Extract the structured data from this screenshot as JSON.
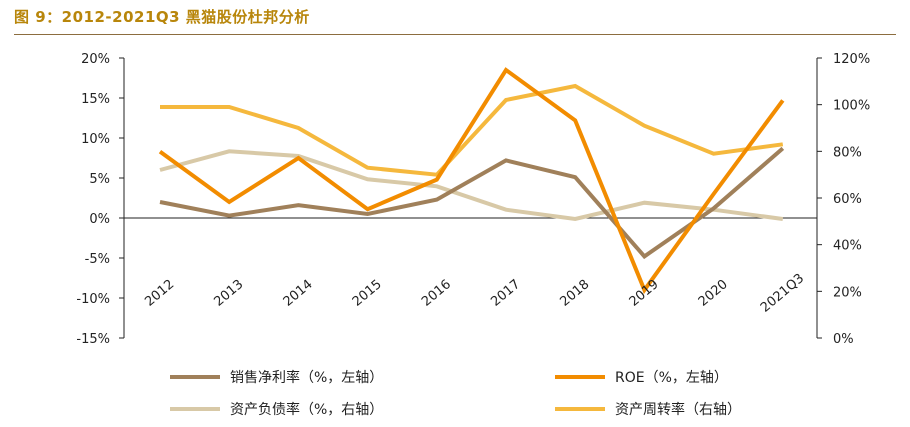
{
  "figure": {
    "title": "图 9：2012-2021Q3 黑猫股份杜邦分析"
  },
  "chart_data": {
    "type": "line",
    "categories": [
      "2012",
      "2013",
      "2014",
      "2015",
      "2016",
      "2017",
      "2018",
      "2019",
      "2020",
      "2021Q3"
    ],
    "left_axis": {
      "ylim": [
        -15,
        20
      ],
      "ticks": [
        20,
        15,
        10,
        5,
        0,
        -5,
        -10,
        -15
      ],
      "tick_labels": [
        "20%",
        "15%",
        "10%",
        "5%",
        "0%",
        "-5%",
        "-10%",
        "-15%"
      ]
    },
    "right_axis": {
      "ylim": [
        0,
        120
      ],
      "ticks": [
        120,
        100,
        80,
        60,
        40,
        20,
        0
      ],
      "tick_labels": [
        "120%",
        "100%",
        "80%",
        "60%",
        "40%",
        "20%",
        "0%"
      ]
    },
    "grid": false,
    "legend_position": "bottom",
    "series": [
      {
        "name": "销售净利率（%，左轴）",
        "axis": "left",
        "color": "#A0805A",
        "values": [
          2.0,
          0.3,
          1.6,
          0.5,
          2.3,
          7.2,
          5.1,
          -4.8,
          1.2,
          8.7
        ]
      },
      {
        "name": "ROE（%，左轴）",
        "axis": "left",
        "color": "#F28C00",
        "values": [
          8.3,
          2.0,
          7.5,
          1.1,
          4.8,
          18.5,
          12.2,
          -9.0,
          3.0,
          14.7
        ]
      },
      {
        "name": "资产负债率（%，右轴）",
        "axis": "right",
        "color": "#D8C9A7",
        "values": [
          72,
          80,
          78,
          68,
          65,
          55,
          51,
          58,
          55,
          51
        ]
      },
      {
        "name": "资产周转率（右轴）",
        "axis": "right",
        "color": "#F5B83D",
        "values": [
          99,
          99,
          90,
          73,
          70,
          102,
          108,
          91,
          79,
          83
        ]
      }
    ]
  }
}
